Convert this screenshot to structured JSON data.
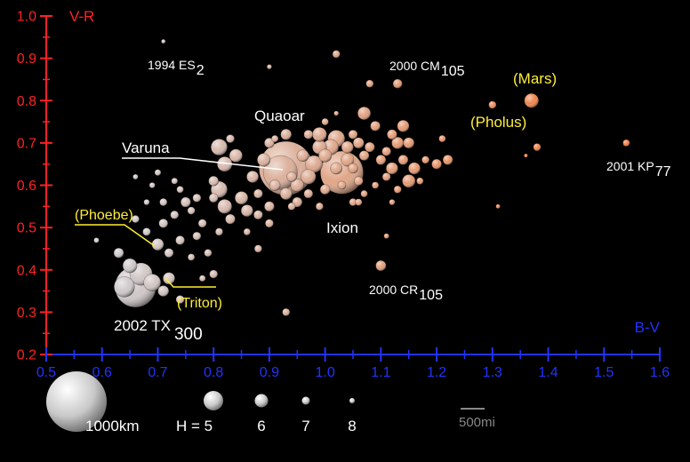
{
  "chart_data": {
    "type": "scatter",
    "ylabel": "V-R",
    "xlabel": "B-V",
    "xlim": [
      0.5,
      1.6
    ],
    "ylim": [
      0.2,
      1.0
    ],
    "x_ticks": [
      "0.5",
      "0.6",
      "0.7",
      "0.8",
      "0.9",
      "1.0",
      "1.1",
      "1.2",
      "1.3",
      "1.4",
      "1.5",
      "1.6"
    ],
    "y_ticks": [
      "0.2",
      "0.3",
      "0.4",
      "0.5",
      "0.6",
      "0.7",
      "0.8",
      "0.9",
      "1.0"
    ],
    "colors": {
      "y_axis": "#ff2222",
      "x_axis": "#2233ff",
      "highlight_label": "#ffee33",
      "label": "#ffffff"
    },
    "named_objects": [
      {
        "name": "Quaoar",
        "x": 0.93,
        "y": 0.64,
        "H": 2.7,
        "highlight": false
      },
      {
        "name": "Ixion",
        "x": 1.03,
        "y": 0.63,
        "H": 3.2,
        "highlight": false
      },
      {
        "name": "Varuna",
        "x": 0.92,
        "y": 0.63,
        "H": 3.7,
        "highlight": false
      },
      {
        "name": "2002 TX",
        "subscript": "300",
        "x": 0.66,
        "y": 0.36,
        "H": 3.3,
        "highlight": false
      },
      {
        "name": "1994 ES",
        "subscript": "2",
        "x": 0.71,
        "y": 0.94,
        "H": 8.3,
        "highlight": false
      },
      {
        "name": "2000 CM",
        "subscript": "105",
        "x": 1.13,
        "y": 0.84,
        "H": 6.5,
        "highlight": false
      },
      {
        "name": "2001 KP",
        "subscript": "77",
        "x": 1.54,
        "y": 0.7,
        "H": 7.2,
        "highlight": false
      },
      {
        "name": "2000 CR",
        "subscript": "105",
        "x": 1.1,
        "y": 0.41,
        "H": 6.3,
        "highlight": false
      },
      {
        "name": "(Mars)",
        "x": 1.37,
        "y": 0.8,
        "H": 5.6,
        "highlight": true
      },
      {
        "name": "(Pholus)",
        "x": 1.3,
        "y": 0.79,
        "H": 7.0,
        "highlight": true
      },
      {
        "name": "(Phoebe)",
        "x": 0.7,
        "y": 0.46,
        "H": 6.0,
        "highlight": true
      },
      {
        "name": "(Triton)",
        "x": 0.72,
        "y": 0.38,
        "H": 6.0,
        "highlight": true
      }
    ],
    "points": [
      {
        "x": 0.67,
        "y": 0.39,
        "H": 4.6
      },
      {
        "x": 0.64,
        "y": 0.36,
        "H": 4.8
      },
      {
        "x": 0.69,
        "y": 0.37,
        "H": 5.2
      },
      {
        "x": 0.65,
        "y": 0.41,
        "H": 5.6
      },
      {
        "x": 0.71,
        "y": 0.35,
        "H": 6.2
      },
      {
        "x": 0.74,
        "y": 0.33,
        "H": 6.8
      },
      {
        "x": 0.63,
        "y": 0.44,
        "H": 6.4
      },
      {
        "x": 0.59,
        "y": 0.47,
        "H": 7.8
      },
      {
        "x": 0.72,
        "y": 0.44,
        "H": 6.6
      },
      {
        "x": 0.74,
        "y": 0.47,
        "H": 6.6
      },
      {
        "x": 0.77,
        "y": 0.48,
        "H": 6.8
      },
      {
        "x": 0.79,
        "y": 0.44,
        "H": 7.0
      },
      {
        "x": 0.76,
        "y": 0.43,
        "H": 7.2
      },
      {
        "x": 0.68,
        "y": 0.49,
        "H": 6.9
      },
      {
        "x": 0.66,
        "y": 0.52,
        "H": 7.0
      },
      {
        "x": 0.71,
        "y": 0.51,
        "H": 6.6
      },
      {
        "x": 0.73,
        "y": 0.53,
        "H": 6.8
      },
      {
        "x": 0.76,
        "y": 0.54,
        "H": 7.0
      },
      {
        "x": 0.78,
        "y": 0.51,
        "H": 6.8
      },
      {
        "x": 0.81,
        "y": 0.49,
        "H": 7.0
      },
      {
        "x": 0.83,
        "y": 0.52,
        "H": 6.4
      },
      {
        "x": 0.86,
        "y": 0.54,
        "H": 6.0
      },
      {
        "x": 0.88,
        "y": 0.53,
        "H": 6.6
      },
      {
        "x": 0.85,
        "y": 0.57,
        "H": 5.8
      },
      {
        "x": 0.82,
        "y": 0.55,
        "H": 5.6
      },
      {
        "x": 0.8,
        "y": 0.57,
        "H": 6.6
      },
      {
        "x": 0.77,
        "y": 0.57,
        "H": 6.8
      },
      {
        "x": 0.74,
        "y": 0.59,
        "H": 7.2
      },
      {
        "x": 0.71,
        "y": 0.56,
        "H": 7.0
      },
      {
        "x": 0.69,
        "y": 0.6,
        "H": 7.6
      },
      {
        "x": 0.66,
        "y": 0.62,
        "H": 7.8
      },
      {
        "x": 0.7,
        "y": 0.63,
        "H": 7.4
      },
      {
        "x": 0.8,
        "y": 0.61,
        "H": 6.4
      },
      {
        "x": 0.82,
        "y": 0.65,
        "H": 5.5
      },
      {
        "x": 0.84,
        "y": 0.67,
        "H": 5.8
      },
      {
        "x": 0.81,
        "y": 0.69,
        "H": 5.3
      },
      {
        "x": 0.83,
        "y": 0.71,
        "H": 6.8
      },
      {
        "x": 0.87,
        "y": 0.62,
        "H": 6.0
      },
      {
        "x": 0.88,
        "y": 0.58,
        "H": 6.6
      },
      {
        "x": 0.9,
        "y": 0.55,
        "H": 6.4
      },
      {
        "x": 0.91,
        "y": 0.6,
        "H": 6.2
      },
      {
        "x": 0.89,
        "y": 0.66,
        "H": 5.8
      },
      {
        "x": 0.9,
        "y": 0.7,
        "H": 6.4
      },
      {
        "x": 0.88,
        "y": 0.45,
        "H": 7.0
      },
      {
        "x": 0.9,
        "y": 0.51,
        "H": 6.8
      },
      {
        "x": 0.86,
        "y": 0.49,
        "H": 7.2
      },
      {
        "x": 0.95,
        "y": 0.56,
        "H": 6.4
      },
      {
        "x": 0.97,
        "y": 0.58,
        "H": 6.6
      },
      {
        "x": 0.95,
        "y": 0.6,
        "H": 5.8
      },
      {
        "x": 0.97,
        "y": 0.62,
        "H": 5.5
      },
      {
        "x": 0.98,
        "y": 0.65,
        "H": 5.2
      },
      {
        "x": 0.96,
        "y": 0.67,
        "H": 6.0
      },
      {
        "x": 0.99,
        "y": 0.69,
        "H": 5.6
      },
      {
        "x": 1.0,
        "y": 0.67,
        "H": 5.8
      },
      {
        "x": 1.01,
        "y": 0.69,
        "H": 5.4
      },
      {
        "x": 1.02,
        "y": 0.71,
        "H": 5.2
      },
      {
        "x": 0.99,
        "y": 0.72,
        "H": 5.6
      },
      {
        "x": 1.0,
        "y": 0.75,
        "H": 7.2
      },
      {
        "x": 0.97,
        "y": 0.72,
        "H": 6.6
      },
      {
        "x": 0.93,
        "y": 0.72,
        "H": 6.2
      },
      {
        "x": 0.91,
        "y": 0.71,
        "H": 7.2
      },
      {
        "x": 1.02,
        "y": 0.64,
        "H": 6.0
      },
      {
        "x": 1.04,
        "y": 0.66,
        "H": 5.8
      },
      {
        "x": 1.05,
        "y": 0.64,
        "H": 6.4
      },
      {
        "x": 1.04,
        "y": 0.69,
        "H": 6.0
      },
      {
        "x": 1.06,
        "y": 0.7,
        "H": 6.2
      },
      {
        "x": 1.07,
        "y": 0.67,
        "H": 6.4
      },
      {
        "x": 1.05,
        "y": 0.72,
        "H": 6.6
      },
      {
        "x": 1.03,
        "y": 0.6,
        "H": 6.8
      },
      {
        "x": 1.06,
        "y": 0.61,
        "H": 6.6
      },
      {
        "x": 1.0,
        "y": 0.59,
        "H": 6.4
      },
      {
        "x": 1.05,
        "y": 0.56,
        "H": 7.0
      },
      {
        "x": 0.99,
        "y": 0.55,
        "H": 7.0
      },
      {
        "x": 0.93,
        "y": 0.58,
        "H": 6.0
      },
      {
        "x": 0.94,
        "y": 0.62,
        "H": 6.4
      },
      {
        "x": 0.94,
        "y": 0.55,
        "H": 7.0
      },
      {
        "x": 1.07,
        "y": 0.58,
        "H": 7.2
      },
      {
        "x": 1.09,
        "y": 0.6,
        "H": 7.2
      },
      {
        "x": 1.08,
        "y": 0.69,
        "H": 6.4
      },
      {
        "x": 1.1,
        "y": 0.66,
        "H": 6.4
      },
      {
        "x": 1.12,
        "y": 0.64,
        "H": 6.0
      },
      {
        "x": 1.11,
        "y": 0.68,
        "H": 6.6
      },
      {
        "x": 1.13,
        "y": 0.7,
        "H": 6.0
      },
      {
        "x": 1.12,
        "y": 0.72,
        "H": 6.4
      },
      {
        "x": 1.14,
        "y": 0.74,
        "H": 6.0
      },
      {
        "x": 1.15,
        "y": 0.7,
        "H": 6.2
      },
      {
        "x": 1.14,
        "y": 0.66,
        "H": 6.4
      },
      {
        "x": 1.16,
        "y": 0.64,
        "H": 6.0
      },
      {
        "x": 1.15,
        "y": 0.61,
        "H": 5.8
      },
      {
        "x": 1.13,
        "y": 0.59,
        "H": 7.0
      },
      {
        "x": 1.11,
        "y": 0.62,
        "H": 6.8
      },
      {
        "x": 1.18,
        "y": 0.66,
        "H": 7.0
      },
      {
        "x": 1.2,
        "y": 0.65,
        "H": 6.4
      },
      {
        "x": 1.22,
        "y": 0.66,
        "H": 6.4
      },
      {
        "x": 1.21,
        "y": 0.71,
        "H": 7.2
      },
      {
        "x": 1.17,
        "y": 0.61,
        "H": 7.2
      },
      {
        "x": 1.12,
        "y": 0.56,
        "H": 7.6
      },
      {
        "x": 1.09,
        "y": 0.74,
        "H": 6.4
      },
      {
        "x": 1.07,
        "y": 0.77,
        "H": 5.8
      },
      {
        "x": 1.08,
        "y": 0.84,
        "H": 7.0
      },
      {
        "x": 1.13,
        "y": 0.84,
        "H": 6.6
      },
      {
        "x": 1.02,
        "y": 0.91,
        "H": 7.0
      },
      {
        "x": 0.9,
        "y": 0.88,
        "H": 8.0
      },
      {
        "x": 1.02,
        "y": 0.77,
        "H": 8.0
      },
      {
        "x": 1.31,
        "y": 0.55,
        "H": 8.2
      },
      {
        "x": 1.38,
        "y": 0.69,
        "H": 7.0
      },
      {
        "x": 1.36,
        "y": 0.67,
        "H": 8.6
      },
      {
        "x": 1.11,
        "y": 0.48,
        "H": 7.8
      },
      {
        "x": 1.06,
        "y": 0.56,
        "H": 7.2
      },
      {
        "x": 0.93,
        "y": 0.3,
        "H": 7.0
      },
      {
        "x": 0.8,
        "y": 0.39,
        "H": 6.8
      },
      {
        "x": 0.78,
        "y": 0.38,
        "H": 7.4
      },
      {
        "x": 0.81,
        "y": 0.59,
        "H": 5.3
      },
      {
        "x": 0.73,
        "y": 0.61,
        "H": 7.4
      },
      {
        "x": 0.75,
        "y": 0.56,
        "H": 6.4
      },
      {
        "x": 0.68,
        "y": 0.56,
        "H": 7.6
      }
    ],
    "key": {
      "size_label": "1000km",
      "h_label": "H = 5",
      "h_values": [
        "6",
        "7",
        "8"
      ],
      "scale_label": "500mi"
    }
  }
}
